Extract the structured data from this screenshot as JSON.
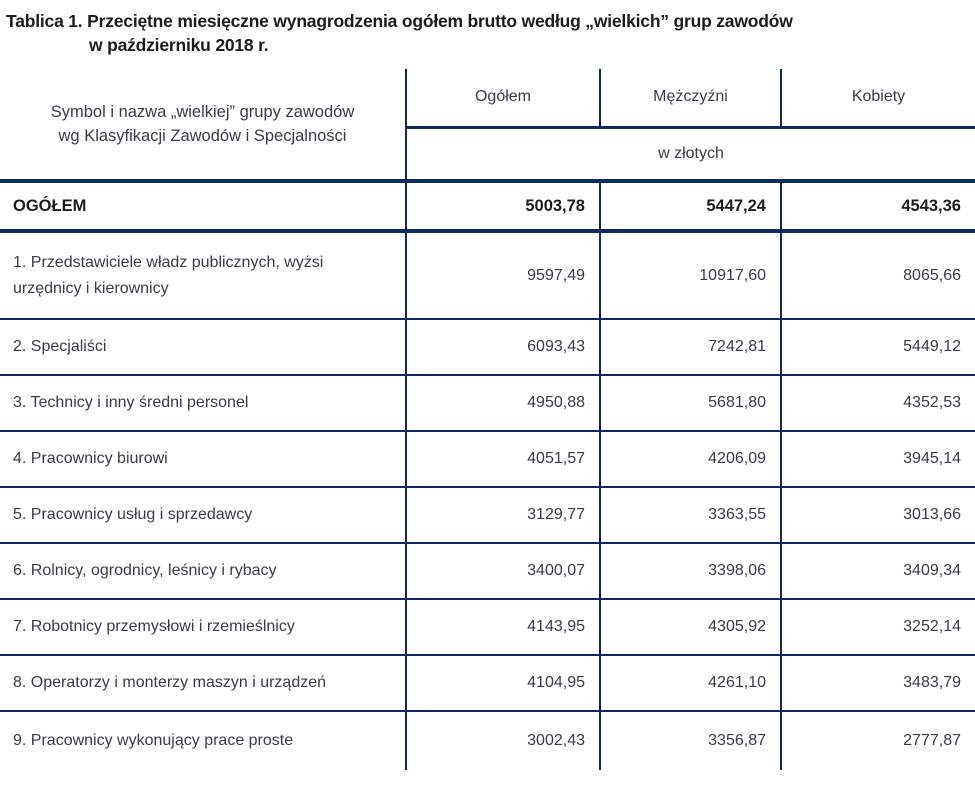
{
  "title": {
    "line1": "Tablica 1. Przeciętne miesięczne wynagrodzenia ogółem brutto według „wielkich” grup zawodów",
    "line2": "w październiku 2018 r."
  },
  "table": {
    "header": {
      "group_column_label": "Symbol i nazwa „wielkiej” grupy zawodów wg Klasyfikacji Zawodów i Specjalności",
      "group_column_line1": "Symbol i nazwa „wielkiej” grupy zawodów",
      "group_column_line2": "wg Klasyfikacji Zawodów i Specjalności",
      "columns": [
        "Ogółem",
        "Mężczyźni",
        "Kobiety"
      ],
      "unit_label": "w złotych"
    },
    "total_row": {
      "label": "OGÓŁEM",
      "values": [
        "5003,78",
        "5447,24",
        "4543,36"
      ]
    },
    "rows": [
      {
        "label": "1. Przedstawiciele władz publicznych, wyżsi urzędnicy i kierownicy",
        "values": [
          "9597,49",
          "10917,60",
          "8065,66"
        ]
      },
      {
        "label": "2. Specjaliści",
        "values": [
          "6093,43",
          "7242,81",
          "5449,12"
        ]
      },
      {
        "label": "3. Technicy i inny średni personel",
        "values": [
          "4950,88",
          "5681,80",
          "4352,53"
        ]
      },
      {
        "label": "4. Pracownicy biurowi",
        "values": [
          "4051,57",
          "4206,09",
          "3945,14"
        ]
      },
      {
        "label": "5. Pracownicy usług i sprzedawcy",
        "values": [
          "3129,77",
          "3363,55",
          "3013,66"
        ]
      },
      {
        "label": "6. Rolnicy, ogrodnicy, leśnicy i rybacy",
        "values": [
          "3400,07",
          "3398,06",
          "3409,34"
        ]
      },
      {
        "label": "7. Robotnicy przemysłowi i rzemieślnicy",
        "values": [
          "4143,95",
          "4305,92",
          "3252,14"
        ]
      },
      {
        "label": "8. Operatorzy i monterzy maszyn i urządzeń",
        "values": [
          "4104,95",
          "4261,10",
          "3483,79"
        ]
      },
      {
        "label": "9. Pracownicy wykonujący prace proste",
        "values": [
          "3002,43",
          "3356,87",
          "2777,87"
        ]
      }
    ]
  },
  "colors": {
    "line_navy": "#0e2a5a",
    "title_text": "#1c1c1a",
    "body_text": "#383c42"
  }
}
